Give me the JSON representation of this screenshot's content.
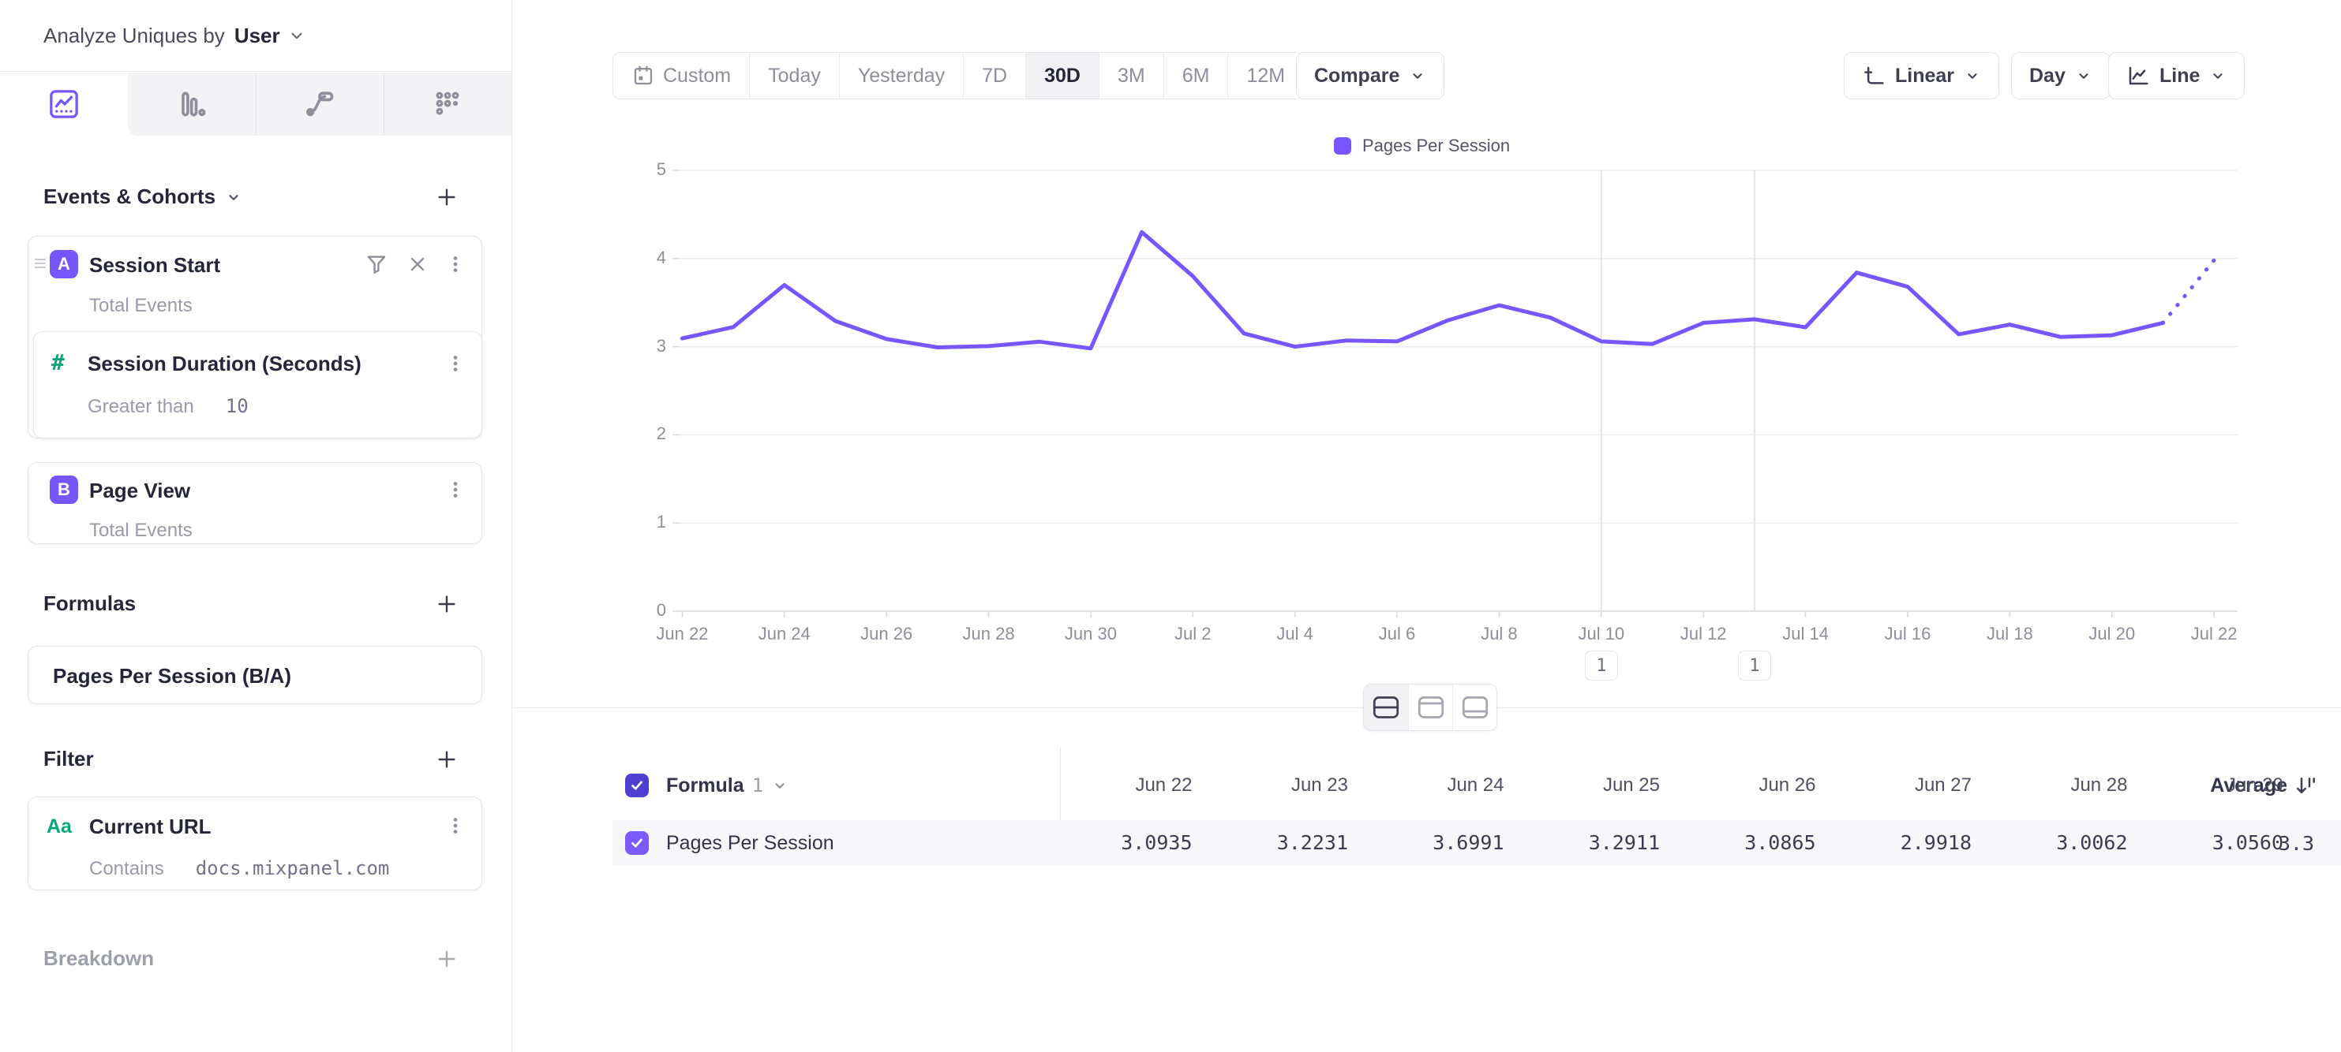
{
  "header": {
    "analyze_label": "Analyze Uniques by",
    "analyze_value": "User"
  },
  "sidebar": {
    "tabs": [
      {
        "icon": "line-chart-icon",
        "selected": true
      },
      {
        "icon": "bar-chart-icon",
        "selected": false
      },
      {
        "icon": "flow-icon",
        "selected": false
      },
      {
        "icon": "retention-grid-icon",
        "selected": false
      }
    ],
    "events": {
      "title": "Events & Cohorts",
      "event_a": {
        "badge": "A",
        "title": "Session Start",
        "subtitle": "Total Events"
      },
      "numeric_filter": {
        "icon_glyph": "#",
        "title": "Session Duration (Seconds)",
        "operator": "Greater than",
        "value": "10"
      },
      "event_b": {
        "badge": "B",
        "title": "Page View",
        "subtitle": "Total Events"
      }
    },
    "formulas": {
      "title": "Formulas",
      "formula": "Pages Per Session (B/A)"
    },
    "filter": {
      "title": "Filter",
      "item": {
        "icon_glyph": "Aa",
        "title": "Current URL",
        "operator": "Contains",
        "value": "docs.mixpanel.com"
      }
    },
    "breakdown": {
      "title": "Breakdown"
    }
  },
  "toolbar": {
    "date_ranges": [
      "Custom",
      "Today",
      "Yesterday",
      "7D",
      "30D",
      "3M",
      "6M",
      "12M"
    ],
    "selected_range": "30D",
    "compare_label": "Compare",
    "y_scale_label": "Linear",
    "interval_label": "Day",
    "chart_style_label": "Line"
  },
  "chart_data": {
    "type": "line",
    "title": "",
    "x": [
      "Jun 22",
      "Jun 23",
      "Jun 24",
      "Jun 25",
      "Jun 26",
      "Jun 27",
      "Jun 28",
      "Jun 29",
      "Jun 30",
      "Jul 1",
      "Jul 2",
      "Jul 3",
      "Jul 4",
      "Jul 5",
      "Jul 6",
      "Jul 7",
      "Jul 8",
      "Jul 9",
      "Jul 10",
      "Jul 11",
      "Jul 12",
      "Jul 13",
      "Jul 14",
      "Jul 15",
      "Jul 16",
      "Jul 17",
      "Jul 18",
      "Jul 19",
      "Jul 20",
      "Jul 21",
      "Jul 22"
    ],
    "series": [
      {
        "name": "Pages Per Session",
        "color": "#7856ff",
        "values": [
          3.0935,
          3.2231,
          3.6991,
          3.2911,
          3.0865,
          2.9918,
          3.0062,
          3.056,
          2.98,
          4.3,
          3.8,
          3.15,
          3.0,
          3.07,
          3.06,
          3.3,
          3.47,
          3.33,
          3.06,
          3.03,
          3.27,
          3.31,
          3.22,
          3.84,
          3.68,
          3.14,
          3.25,
          3.11,
          3.13,
          3.27,
          3.98
        ]
      }
    ],
    "ylim": [
      0,
      5
    ],
    "yticks": [
      0,
      1,
      2,
      3,
      4,
      5
    ],
    "xtick_every": 2,
    "dotted_tail_from_index": 29,
    "grid": "horizontal",
    "legend_position": "top-center",
    "annotations": [
      {
        "index": 18,
        "x_label": "Jul 10",
        "count": "1"
      },
      {
        "index": 21,
        "x_label": "Jul 13",
        "count": "1"
      }
    ]
  },
  "view_toggle": {
    "options": [
      "split-view",
      "chart-only",
      "table-only"
    ],
    "selected": "split-view"
  },
  "table": {
    "series_label": "Formula",
    "series_number": "1",
    "average_label": "Average",
    "date_columns": [
      "Jun 22",
      "Jun 23",
      "Jun 24",
      "Jun 25",
      "Jun 26",
      "Jun 27",
      "Jun 28",
      "Jun 29"
    ],
    "rows": [
      {
        "label": "Pages Per Session",
        "average": "3.3",
        "checked": true,
        "values": [
          "3.0935",
          "3.2231",
          "3.6991",
          "3.2911",
          "3.0865",
          "2.9918",
          "3.0062",
          "3.0560"
        ]
      }
    ]
  },
  "colors": {
    "accent": "#7856ff",
    "green": "#0ba57c",
    "grid": "#ededf1",
    "axis": "#d8d8de",
    "header_checkbox": "#4f3fd1",
    "row_checkbox": "#7a5af8"
  }
}
